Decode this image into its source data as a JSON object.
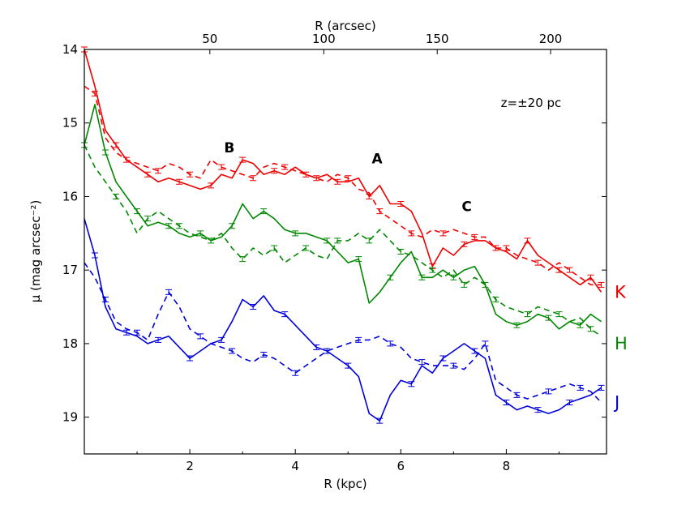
{
  "chart_data": {
    "type": "line",
    "xlabel": "R (kpc)",
    "ylabel": "μ (mag arcsec⁻²)",
    "x2label": "R (arcsec)",
    "xlim": [
      0,
      9.9
    ],
    "ylim": [
      19.5,
      14
    ],
    "x_ticks": [
      2,
      4,
      6,
      8
    ],
    "y_ticks": [
      14,
      15,
      16,
      17,
      18,
      19
    ],
    "x2_ticks": [
      {
        "label": "50",
        "x": 2.38
      },
      {
        "label": "100",
        "x": 4.54
      },
      {
        "label": "150",
        "x": 6.69
      },
      {
        "label": "200",
        "x": 8.84
      }
    ],
    "annotation_text": "z=±20 pc",
    "features": [
      {
        "label": "B",
        "x": 2.75,
        "y": 15.4
      },
      {
        "label": "A",
        "x": 5.55,
        "y": 15.55
      },
      {
        "label": "C",
        "x": 7.25,
        "y": 16.2
      }
    ],
    "series": [
      {
        "name": "K",
        "color": "#ee0000",
        "style": "solid",
        "x": [
          0,
          0.2,
          0.4,
          0.6,
          0.8,
          1.0,
          1.2,
          1.4,
          1.6,
          1.8,
          2.0,
          2.2,
          2.4,
          2.6,
          2.8,
          3.0,
          3.2,
          3.4,
          3.6,
          3.8,
          4.0,
          4.2,
          4.4,
          4.6,
          4.8,
          5.0,
          5.2,
          5.4,
          5.6,
          5.8,
          6.0,
          6.2,
          6.4,
          6.6,
          6.8,
          7.0,
          7.2,
          7.4,
          7.6,
          7.8,
          8.0,
          8.2,
          8.4,
          8.6,
          8.8,
          9.0,
          9.2,
          9.4,
          9.6,
          9.8
        ],
        "y": [
          14.0,
          14.5,
          15.1,
          15.3,
          15.5,
          15.6,
          15.7,
          15.8,
          15.75,
          15.8,
          15.85,
          15.9,
          15.85,
          15.7,
          15.75,
          15.5,
          15.55,
          15.7,
          15.65,
          15.7,
          15.6,
          15.7,
          15.75,
          15.7,
          15.8,
          15.8,
          15.75,
          16.0,
          15.85,
          16.1,
          16.1,
          16.2,
          16.5,
          16.95,
          16.7,
          16.8,
          16.65,
          16.6,
          16.6,
          16.7,
          16.75,
          16.85,
          16.6,
          16.8,
          16.9,
          17.0,
          17.1,
          17.2,
          17.1,
          17.3
        ]
      },
      {
        "name": "K dashed",
        "color": "#ee0000",
        "style": "dashed",
        "x": [
          0,
          0.2,
          0.4,
          0.6,
          0.8,
          1.0,
          1.2,
          1.4,
          1.6,
          1.8,
          2.0,
          2.2,
          2.4,
          2.6,
          2.8,
          3.0,
          3.2,
          3.4,
          3.6,
          3.8,
          4.0,
          4.2,
          4.4,
          4.6,
          4.8,
          5.0,
          5.2,
          5.4,
          5.6,
          5.8,
          6.0,
          6.2,
          6.4,
          6.6,
          6.8,
          7.0,
          7.2,
          7.4,
          7.6,
          7.8,
          8.0,
          8.2,
          8.4,
          8.6,
          8.8,
          9.0,
          9.2,
          9.4,
          9.6,
          9.8
        ],
        "y": [
          14.5,
          14.6,
          15.2,
          15.4,
          15.5,
          15.55,
          15.6,
          15.65,
          15.55,
          15.6,
          15.7,
          15.75,
          15.5,
          15.6,
          15.65,
          15.7,
          15.75,
          15.6,
          15.55,
          15.6,
          15.65,
          15.7,
          15.75,
          15.8,
          15.7,
          15.75,
          15.9,
          15.95,
          16.2,
          16.3,
          16.4,
          16.5,
          16.55,
          16.45,
          16.5,
          16.45,
          16.5,
          16.55,
          16.55,
          16.7,
          16.7,
          16.8,
          16.85,
          16.9,
          17.0,
          16.9,
          17.0,
          17.1,
          17.2,
          17.2
        ]
      },
      {
        "name": "H",
        "color": "#008800",
        "style": "solid",
        "x": [
          0,
          0.2,
          0.4,
          0.6,
          0.8,
          1.0,
          1.2,
          1.4,
          1.6,
          1.8,
          2.0,
          2.2,
          2.4,
          2.6,
          2.8,
          3.0,
          3.2,
          3.4,
          3.6,
          3.8,
          4.0,
          4.2,
          4.4,
          4.6,
          4.8,
          5.0,
          5.2,
          5.4,
          5.6,
          5.8,
          6.0,
          6.2,
          6.4,
          6.6,
          6.8,
          7.0,
          7.2,
          7.4,
          7.6,
          7.8,
          8.0,
          8.2,
          8.4,
          8.6,
          8.8,
          9.0,
          9.2,
          9.4,
          9.6,
          9.8
        ],
        "y": [
          15.3,
          14.75,
          15.4,
          15.8,
          16.0,
          16.2,
          16.4,
          16.35,
          16.4,
          16.5,
          16.55,
          16.5,
          16.6,
          16.55,
          16.4,
          16.1,
          16.3,
          16.2,
          16.3,
          16.45,
          16.5,
          16.5,
          16.55,
          16.6,
          16.75,
          16.9,
          16.85,
          17.45,
          17.3,
          17.1,
          16.9,
          16.75,
          17.1,
          17.1,
          17.0,
          17.1,
          17.0,
          16.95,
          17.2,
          17.6,
          17.7,
          17.75,
          17.7,
          17.6,
          17.65,
          17.8,
          17.7,
          17.75,
          17.6,
          17.7
        ]
      },
      {
        "name": "H dashed",
        "color": "#008800",
        "style": "dashed",
        "x": [
          0,
          0.2,
          0.4,
          0.6,
          0.8,
          1.0,
          1.2,
          1.4,
          1.6,
          1.8,
          2.0,
          2.2,
          2.4,
          2.6,
          2.8,
          3.0,
          3.2,
          3.4,
          3.6,
          3.8,
          4.0,
          4.2,
          4.4,
          4.6,
          4.8,
          5.0,
          5.2,
          5.4,
          5.6,
          5.8,
          6.0,
          6.2,
          6.4,
          6.6,
          6.8,
          7.0,
          7.2,
          7.4,
          7.6,
          7.8,
          8.0,
          8.2,
          8.4,
          8.6,
          8.8,
          9.0,
          9.2,
          9.4,
          9.6,
          9.8
        ],
        "y": [
          15.3,
          15.6,
          15.8,
          16.0,
          16.2,
          16.5,
          16.3,
          16.2,
          16.3,
          16.4,
          16.5,
          16.55,
          16.6,
          16.5,
          16.7,
          16.85,
          16.7,
          16.8,
          16.7,
          16.9,
          16.8,
          16.7,
          16.8,
          16.85,
          16.6,
          16.6,
          16.5,
          16.6,
          16.45,
          16.6,
          16.75,
          16.8,
          16.9,
          17.0,
          17.1,
          17.0,
          17.2,
          17.1,
          17.2,
          17.4,
          17.5,
          17.55,
          17.6,
          17.5,
          17.55,
          17.6,
          17.7,
          17.65,
          17.8,
          17.9
        ]
      },
      {
        "name": "J",
        "color": "#0000dd",
        "style": "solid",
        "x": [
          0,
          0.2,
          0.4,
          0.6,
          0.8,
          1.0,
          1.2,
          1.4,
          1.6,
          1.8,
          2.0,
          2.2,
          2.4,
          2.6,
          2.8,
          3.0,
          3.2,
          3.4,
          3.6,
          3.8,
          4.0,
          4.2,
          4.4,
          4.6,
          4.8,
          5.0,
          5.2,
          5.4,
          5.6,
          5.8,
          6.0,
          6.2,
          6.4,
          6.6,
          6.8,
          7.0,
          7.2,
          7.4,
          7.6,
          7.8,
          8.0,
          8.2,
          8.4,
          8.6,
          8.8,
          9.0,
          9.2,
          9.4,
          9.6,
          9.8
        ],
        "y": [
          16.3,
          16.8,
          17.5,
          17.8,
          17.85,
          17.9,
          18.0,
          17.95,
          17.9,
          18.05,
          18.2,
          18.1,
          18.0,
          17.95,
          17.7,
          17.4,
          17.5,
          17.35,
          17.55,
          17.6,
          17.75,
          17.9,
          18.05,
          18.1,
          18.2,
          18.3,
          18.45,
          18.95,
          19.05,
          18.7,
          18.5,
          18.55,
          18.3,
          18.4,
          18.2,
          18.1,
          18.0,
          18.1,
          18.2,
          18.7,
          18.8,
          18.9,
          18.85,
          18.9,
          18.95,
          18.9,
          18.8,
          18.75,
          18.7,
          18.6
        ]
      },
      {
        "name": "J dashed",
        "color": "#0000dd",
        "style": "dashed",
        "x": [
          0,
          0.2,
          0.4,
          0.6,
          0.8,
          1.0,
          1.2,
          1.4,
          1.6,
          1.8,
          2.0,
          2.2,
          2.4,
          2.6,
          2.8,
          3.0,
          3.2,
          3.4,
          3.6,
          3.8,
          4.0,
          4.2,
          4.4,
          4.6,
          4.8,
          5.0,
          5.2,
          5.4,
          5.6,
          5.8,
          6.0,
          6.2,
          6.4,
          6.6,
          6.8,
          7.0,
          7.2,
          7.4,
          7.6,
          7.8,
          8.0,
          8.2,
          8.4,
          8.6,
          8.8,
          9.0,
          9.2,
          9.4,
          9.6,
          9.8
        ],
        "y": [
          16.9,
          17.1,
          17.4,
          17.7,
          17.8,
          17.85,
          17.95,
          17.6,
          17.3,
          17.5,
          17.8,
          17.9,
          18.0,
          18.05,
          18.1,
          18.2,
          18.25,
          18.15,
          18.2,
          18.3,
          18.4,
          18.3,
          18.2,
          18.1,
          18.05,
          18.0,
          17.95,
          17.95,
          17.9,
          18.0,
          18.05,
          18.2,
          18.25,
          18.3,
          18.3,
          18.3,
          18.35,
          18.2,
          18.0,
          18.5,
          18.6,
          18.7,
          18.75,
          18.7,
          18.65,
          18.6,
          18.55,
          18.6,
          18.65,
          18.8
        ]
      }
    ],
    "legend": [
      {
        "label": "K",
        "color": "#ee0000"
      },
      {
        "label": "H",
        "color": "#008800"
      },
      {
        "label": "J",
        "color": "#0000dd"
      }
    ]
  }
}
